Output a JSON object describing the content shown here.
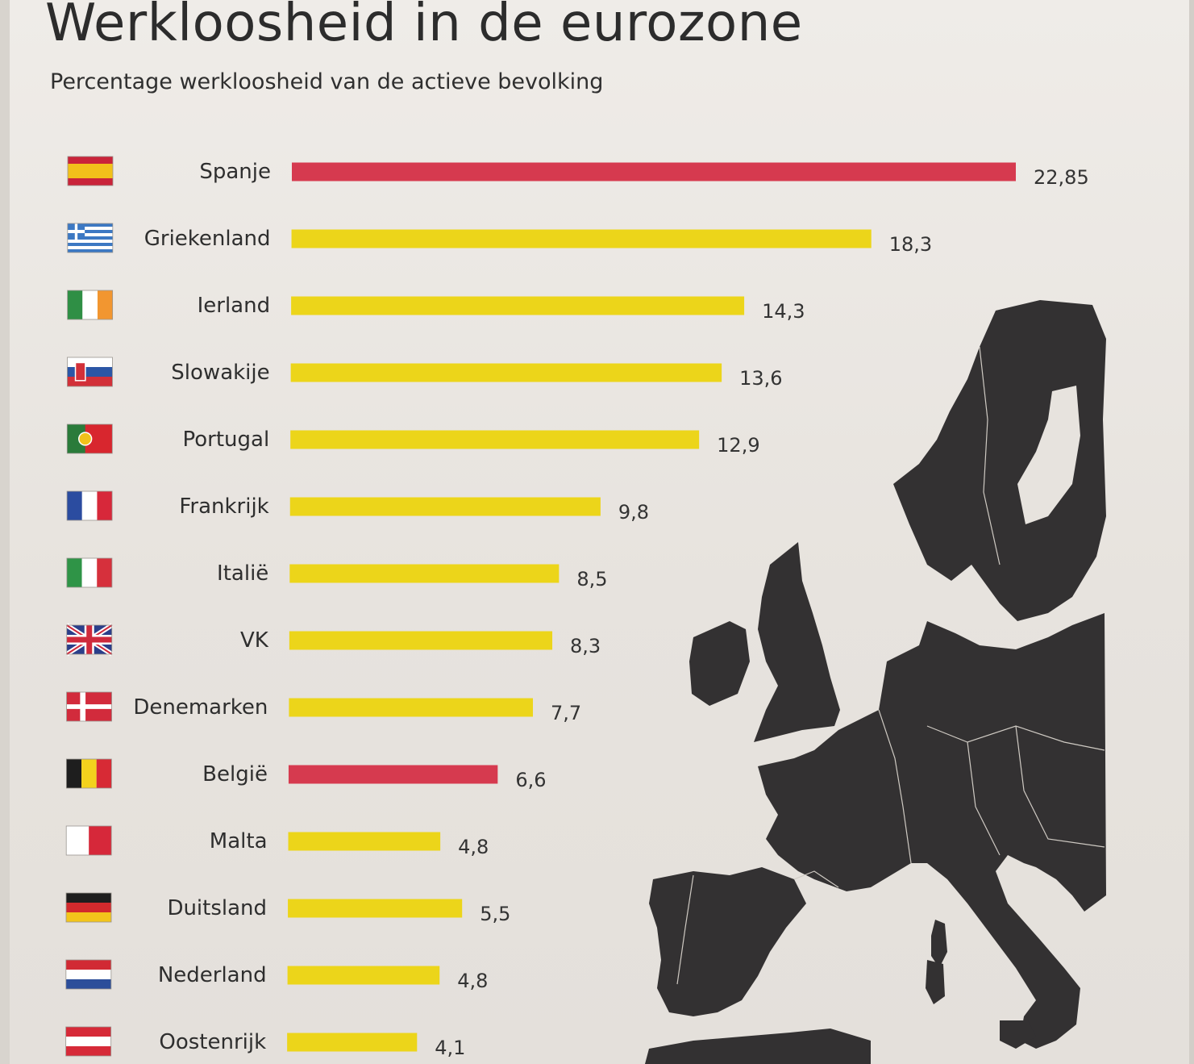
{
  "header": {
    "title": "Werkloosheid in de eurozone",
    "subtitle": "Percentage werkloosheid van de actieve bevolking"
  },
  "colors": {
    "highlight": "#d63a4f",
    "default": "#ecd51a",
    "map_land": "#333132"
  },
  "chart_data": {
    "type": "bar",
    "orientation": "horizontal",
    "title": "Werkloosheid in de eurozone",
    "subtitle": "Percentage werkloosheid van de actieve bevolking",
    "xlabel": "",
    "ylabel": "",
    "unit": "%",
    "categories": [
      "Spanje",
      "Griekenland",
      "Ierland",
      "Slowakije",
      "Portugal",
      "Frankrijk",
      "Italië",
      "VK",
      "Denemarken",
      "België",
      "Malta",
      "Duitsland",
      "Nederland",
      "Oostenrijk"
    ],
    "values": [
      22.85,
      18.3,
      14.3,
      13.6,
      12.9,
      9.8,
      8.5,
      8.3,
      7.7,
      6.6,
      4.8,
      5.5,
      4.8,
      4.1
    ],
    "value_labels": [
      "22,85",
      "18,3",
      "14,3",
      "13,6",
      "12,9",
      "9,8",
      "8,5",
      "8,3",
      "7,7",
      "6,6",
      "4,8",
      "5,5",
      "4,8",
      "4,1"
    ],
    "highlighted": [
      "Spanje",
      "België"
    ],
    "flags": [
      "flag-spain",
      "flag-greece",
      "flag-ireland",
      "flag-slovakia",
      "flag-portugal",
      "flag-france",
      "flag-italy",
      "flag-uk",
      "flag-denmark",
      "flag-belgium",
      "flag-malta",
      "flag-germany",
      "flag-netherlands",
      "flag-austria"
    ]
  }
}
